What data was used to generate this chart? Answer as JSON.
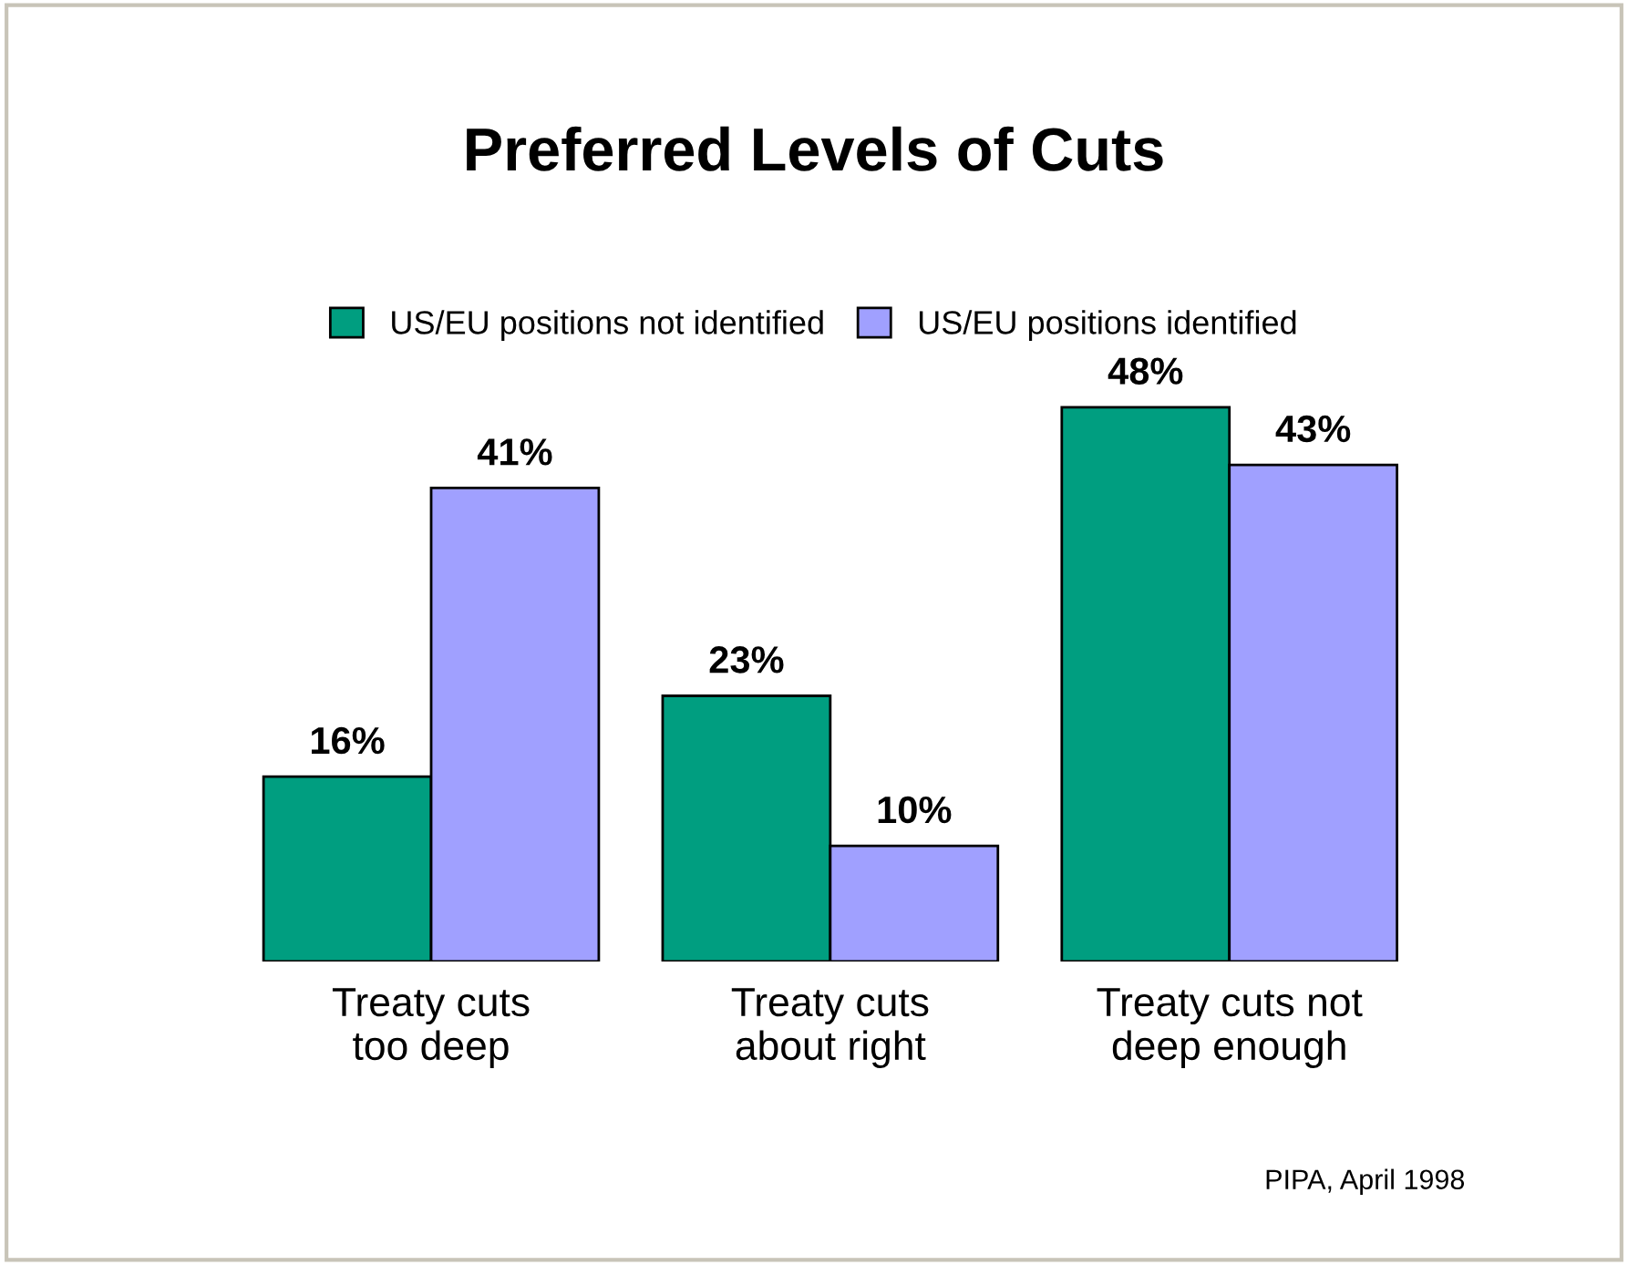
{
  "chart_data": {
    "type": "bar",
    "title": "Preferred Levels of Cuts",
    "categories": [
      "Treaty cuts\ntoo deep",
      "Treaty cuts\nabout right",
      "Treaty cuts not\ndeep enough"
    ],
    "series": [
      {
        "name": "US/EU positions not identified",
        "color": "#009e80",
        "values": [
          16,
          23,
          48
        ],
        "value_labels": [
          "16%",
          "23%",
          "48%"
        ]
      },
      {
        "name": "US/EU positions identified",
        "color": "#a0a0ff",
        "values": [
          41,
          10,
          43
        ],
        "value_labels": [
          "41%",
          "10%",
          "43%"
        ]
      }
    ],
    "legend": "top",
    "grid": false,
    "tick_labels": "x",
    "annotations": [
      "PIPA, April 1998"
    ]
  }
}
